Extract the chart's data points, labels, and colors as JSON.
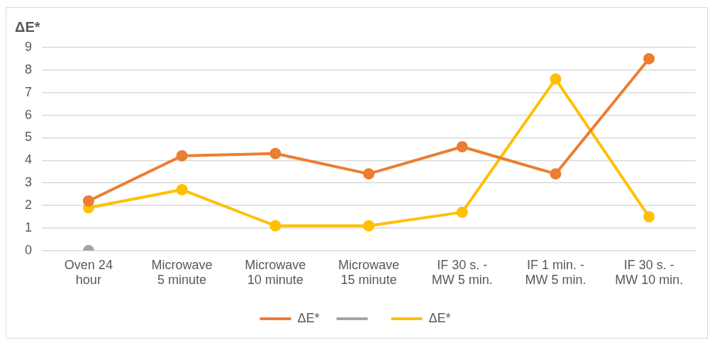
{
  "chart_data": {
    "type": "line",
    "title": "ΔE*",
    "categories": [
      "Oven 24 hour",
      "Microwave 5 minute",
      "Microwave 10 minute",
      "Microwave 15 minute",
      "IF 30 s. - MW 5 min.",
      "IF 1 min. - MW 5 min.",
      "IF 30 s. - MW 10 min."
    ],
    "series": [
      {
        "name": "ΔE*",
        "color": "#ed7d31",
        "values": [
          2.2,
          4.2,
          4.3,
          3.4,
          4.6,
          3.4,
          8.5
        ]
      },
      {
        "color": "#a5a5a5",
        "values": [
          0,
          null,
          null,
          null,
          null,
          null,
          null
        ]
      },
      {
        "name": "ΔE*",
        "color": "#ffc000",
        "values": [
          1.9,
          2.7,
          1.1,
          1.1,
          1.7,
          7.6,
          1.5
        ]
      }
    ],
    "ylim": [
      0,
      9
    ],
    "yticks": [
      0,
      1,
      2,
      3,
      4,
      5,
      6,
      7,
      8,
      9
    ],
    "grid": "y",
    "legend": "bottom",
    "marker": "circle",
    "line_style": "solid"
  }
}
